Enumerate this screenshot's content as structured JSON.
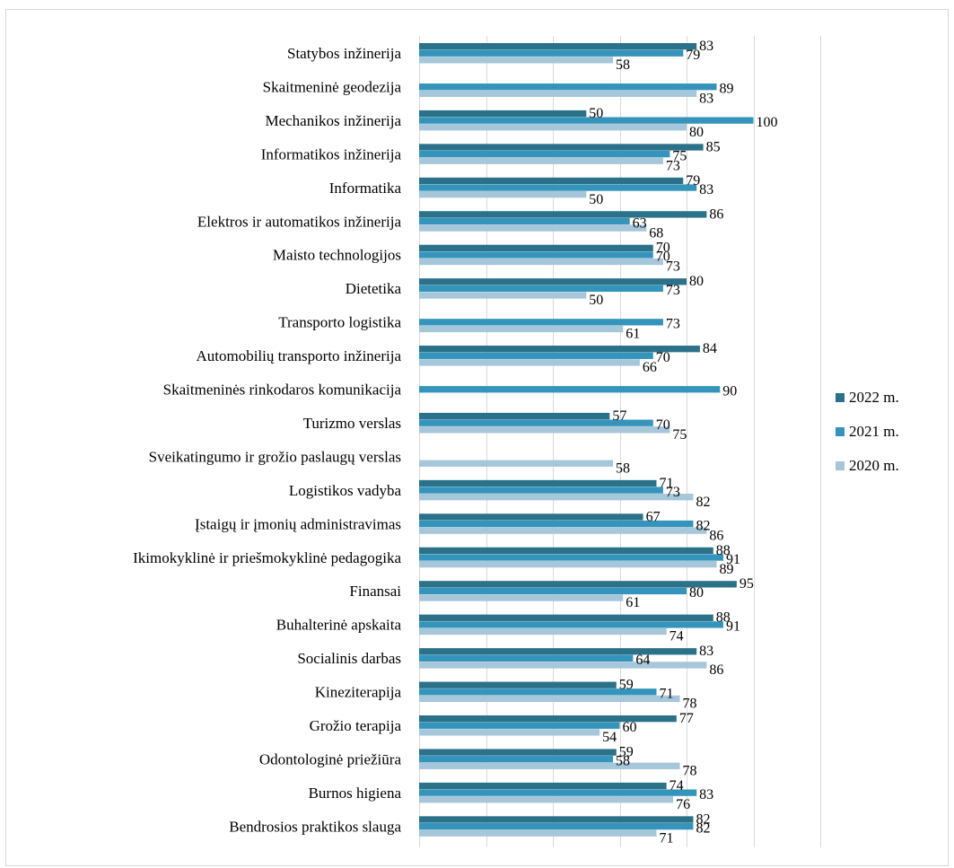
{
  "chart_data": {
    "type": "bar",
    "orientation": "horizontal",
    "title": "",
    "xlabel": "",
    "ylabel": "",
    "xlim": [
      0,
      120
    ],
    "grid": "vertical",
    "legend_position": "right",
    "categories": [
      "Statybos inžinerija",
      "Skaitmeninė geodezija",
      "Mechanikos inžinerija",
      "Informatikos inžinerija",
      "Informatika",
      "Elektros ir automatikos inžinerija",
      "Maisto technologijos",
      "Dietetika",
      "Transporto logistika",
      "Automobilių transporto inžinerija",
      "Skaitmeninės rinkodaros komunikacija",
      "Turizmo verslas",
      "Sveikatingumo ir grožio paslaugų verslas",
      "Logistikos vadyba",
      "Įstaigų ir įmonių administravimas",
      "Ikimokyklinė ir priešmokyklinė pedagogika",
      "Finansai",
      "Buhalterinė apskaita",
      "Socialinis darbas",
      "Kineziterapija",
      "Grožio terapija",
      "Odontologinė priežiūra",
      "Burnos higiena",
      "Bendrosios praktikos slauga"
    ],
    "series": [
      {
        "name": "2022 m.",
        "color": "#2a7189",
        "values": [
          83,
          null,
          50,
          85,
          79,
          86,
          70,
          80,
          null,
          84,
          null,
          57,
          null,
          71,
          67,
          88,
          95,
          88,
          83,
          59,
          77,
          59,
          74,
          82
        ]
      },
      {
        "name": "2021 m.",
        "color": "#3594bb",
        "values": [
          79,
          89,
          100,
          75,
          83,
          63,
          70,
          73,
          73,
          70,
          90,
          70,
          null,
          73,
          82,
          91,
          80,
          91,
          64,
          71,
          60,
          58,
          83,
          82
        ]
      },
      {
        "name": "2020 m.",
        "color": "#a6c6d9",
        "values": [
          58,
          83,
          80,
          73,
          50,
          68,
          73,
          50,
          61,
          66,
          null,
          75,
          58,
          82,
          86,
          89,
          61,
          74,
          86,
          78,
          54,
          78,
          76,
          71
        ]
      }
    ]
  }
}
